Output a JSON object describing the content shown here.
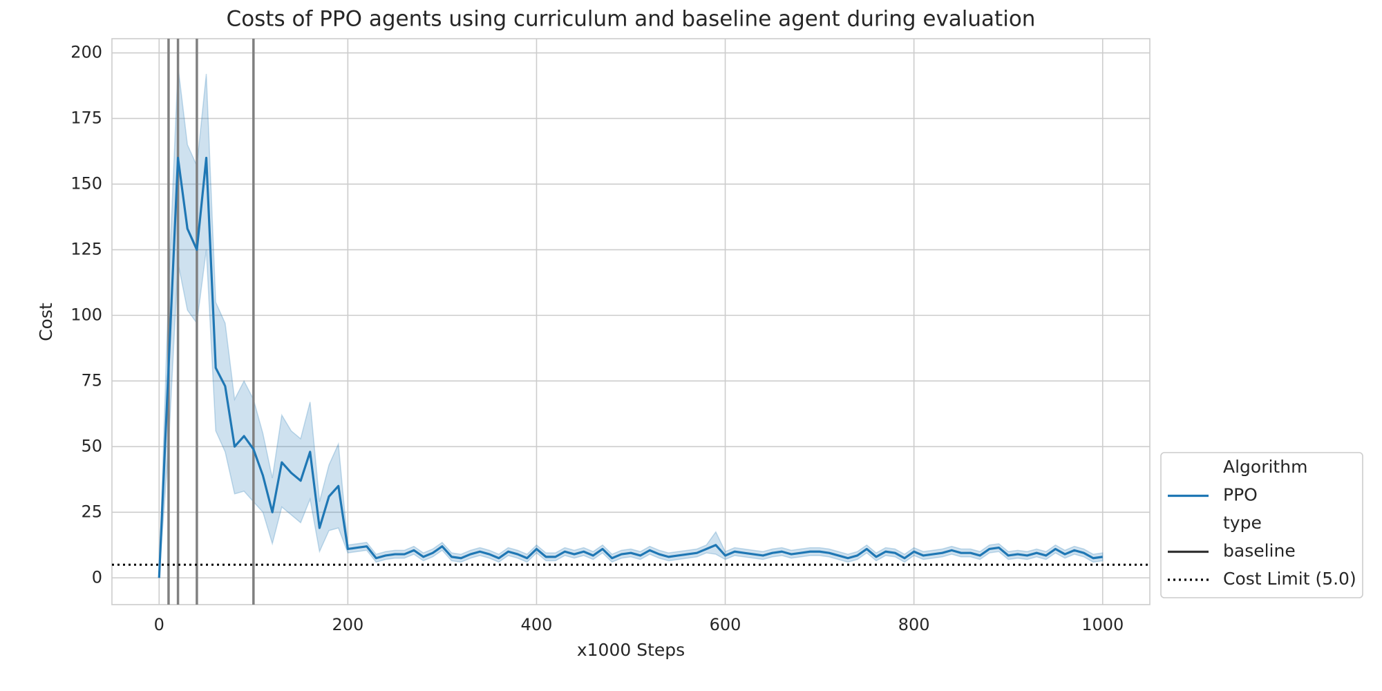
{
  "chart_data": {
    "type": "line",
    "title": "Costs of PPO agents using curriculum and baseline agent during evaluation",
    "x_label": "x1000 Steps",
    "y_label": "Cost",
    "x": [
      0,
      10,
      20,
      30,
      40,
      50,
      60,
      70,
      80,
      90,
      100,
      110,
      120,
      130,
      140,
      150,
      160,
      170,
      180,
      190,
      200,
      210,
      220,
      230,
      240,
      250,
      260,
      270,
      280,
      290,
      300,
      310,
      320,
      330,
      340,
      350,
      360,
      370,
      380,
      390,
      400,
      410,
      420,
      430,
      440,
      450,
      460,
      470,
      480,
      490,
      500,
      510,
      520,
      530,
      540,
      550,
      560,
      570,
      580,
      590,
      600,
      610,
      620,
      630,
      640,
      650,
      660,
      670,
      680,
      690,
      700,
      710,
      720,
      730,
      740,
      750,
      760,
      770,
      780,
      790,
      800,
      810,
      820,
      830,
      840,
      850,
      860,
      870,
      880,
      890,
      900,
      910,
      920,
      930,
      940,
      950,
      960,
      970,
      980,
      990,
      1000
    ],
    "series": [
      {
        "name": "PPO",
        "color": "#1f77b4",
        "values": [
          0,
          80,
          160,
          133,
          125,
          160,
          80,
          73,
          50,
          54,
          49,
          39,
          25,
          44,
          40,
          37,
          48,
          19,
          31,
          35,
          11,
          11.5,
          12,
          7.5,
          8.5,
          9,
          9,
          10.5,
          8,
          9.5,
          12,
          8,
          7.5,
          9,
          10,
          9,
          7.5,
          10,
          9,
          7.5,
          11,
          8,
          8,
          10,
          9,
          10,
          8.5,
          11,
          7.5,
          9,
          9.5,
          8.5,
          10.5,
          9,
          8,
          8.5,
          9,
          9.5,
          11,
          12.5,
          8.5,
          10,
          9.5,
          9,
          8.5,
          9.5,
          10,
          9,
          9.5,
          10,
          10,
          9.5,
          8.5,
          7.5,
          8.5,
          11,
          8,
          10,
          9.5,
          7.5,
          10,
          8.5,
          9,
          9.5,
          10.5,
          9.5,
          9.5,
          8.5,
          11,
          11.5,
          8.5,
          9,
          8.5,
          9.5,
          8.5,
          11,
          9,
          10.5,
          9.5,
          7.5,
          8
        ],
        "lower": [
          0,
          50,
          120,
          102,
          97,
          125,
          56,
          48,
          32,
          33,
          29,
          25,
          13,
          27,
          24,
          21,
          30,
          10,
          18,
          19,
          9.5,
          10,
          10.5,
          6,
          7,
          7.5,
          7.5,
          9,
          6.5,
          8,
          10.5,
          6.5,
          6,
          7.5,
          8.5,
          7.5,
          6,
          8.5,
          7.5,
          6,
          9.5,
          6.5,
          6.5,
          8.5,
          7.5,
          8.5,
          7,
          9.5,
          6,
          7.5,
          8,
          7,
          9,
          7.5,
          6.5,
          7,
          7.5,
          8,
          9.5,
          9,
          7,
          8.5,
          8,
          7.5,
          7,
          8,
          8.5,
          7.5,
          8,
          8.5,
          8.5,
          8,
          7,
          6,
          7,
          9.5,
          6.5,
          8.5,
          8,
          6,
          8.5,
          7,
          7.5,
          8,
          9,
          8,
          8,
          7,
          9.5,
          10,
          7,
          7.5,
          7,
          8,
          7,
          9.5,
          7.5,
          9,
          8,
          6,
          6.5
        ],
        "upper": [
          0,
          110,
          195,
          165,
          157,
          192,
          105,
          97,
          68,
          75,
          68,
          55,
          38,
          62,
          56,
          53,
          67,
          29,
          43,
          51,
          12.5,
          13,
          13.5,
          9,
          10,
          10.5,
          10.5,
          12,
          9.5,
          11,
          13.5,
          9.5,
          9,
          10.5,
          11.5,
          10.5,
          9,
          11.5,
          10.5,
          9,
          12.5,
          9.5,
          9.5,
          11.5,
          10.5,
          11.5,
          10,
          12.5,
          9,
          10.5,
          11,
          10,
          12,
          10.5,
          9.5,
          10,
          10.5,
          11,
          12.5,
          17.5,
          10,
          11.5,
          11,
          10.5,
          10,
          11,
          11.5,
          10.5,
          11,
          11.5,
          11.5,
          11,
          10,
          9,
          10,
          12.5,
          9.5,
          11.5,
          11,
          9,
          11.5,
          10,
          10.5,
          11,
          12,
          11,
          11,
          10,
          12.5,
          13,
          10,
          10.5,
          10,
          11,
          10,
          12.5,
          10.5,
          12,
          11,
          9,
          9.5
        ]
      }
    ],
    "vlines": [
      10,
      20,
      40,
      100
    ],
    "vline_color": "#808080",
    "hline": {
      "value": 5,
      "name": "Cost Limit (5.0)",
      "color": "#000000"
    },
    "legend_titles": [
      "Algorithm",
      "type"
    ],
    "style_name": "baseline",
    "legend_position": "lower right outside",
    "xlim": [
      -50,
      1050
    ],
    "ylim": [
      -10.2,
      205.4
    ],
    "xticks": [
      0,
      200,
      400,
      600,
      800,
      1000
    ],
    "yticks": [
      0,
      25,
      50,
      75,
      100,
      125,
      150,
      175,
      200
    ],
    "grid": true
  }
}
